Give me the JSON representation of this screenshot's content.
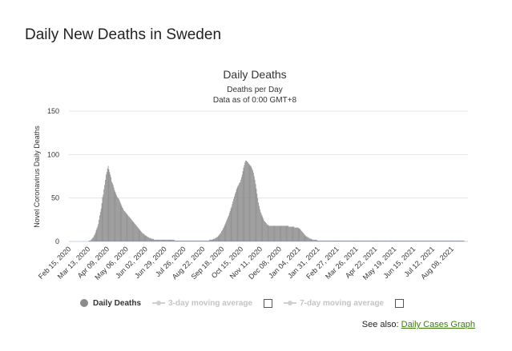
{
  "page": {
    "title": "Daily New Deaths in Sweden",
    "see_also_label": "See also:",
    "see_also_link": "Daily Cases Graph"
  },
  "legend": {
    "series_label": "Daily Deaths",
    "ma3_label": "3-day moving average",
    "ma7_label": "7-day moving average"
  },
  "colors": {
    "bar": "#8c8c8c",
    "grid": "#e6e6e6",
    "link": "#3a7d0a",
    "legend_inactive": "#c4c4c4"
  },
  "chart_data": {
    "type": "bar",
    "title": "Daily Deaths",
    "subtitle": "Deaths per Day",
    "subtitle2": "Data as of 0:00 GMT+8",
    "ylabel": "Novel Coronavirus Daily Deaths",
    "xlabel": "",
    "ylim": [
      0,
      150
    ],
    "yticks": [
      0,
      50,
      100,
      150
    ],
    "grid": true,
    "legend_position": "bottom",
    "x_start": "Feb 15, 2020",
    "x_end": "Aug 31, 2021",
    "xtick_labels": [
      "Feb 15, 2020",
      "Mar 13, 2020",
      "Apr 09, 2020",
      "May 06, 2020",
      "Jun 02, 2020",
      "Jun 29, 2020",
      "Jul 26, 2020",
      "Aug 22, 2020",
      "Sep 18, 2020",
      "Oct 15, 2020",
      "Nov 11, 2020",
      "Dec 08, 2020",
      "Jan 04, 2021",
      "Jan 31, 2021",
      "Feb 27, 2021",
      "Mar 26, 2021",
      "Apr 22, 2021",
      "May 19, 2021",
      "Jun 15, 2021",
      "Jul 12, 2021",
      "Aug 08, 2021"
    ],
    "series": [
      {
        "name": "Daily Deaths",
        "values": [
          0,
          0,
          0,
          0,
          0,
          0,
          0,
          0,
          0,
          0,
          0,
          0,
          0,
          0,
          0,
          0,
          0,
          0,
          0,
          0,
          0,
          0,
          0,
          0,
          0,
          0,
          0,
          0,
          1,
          1,
          1,
          2,
          3,
          4,
          5,
          7,
          8,
          10,
          13,
          15,
          17,
          20,
          25,
          30,
          34,
          38,
          44,
          51,
          54,
          60,
          65,
          71,
          77,
          80,
          84,
          87,
          83,
          80,
          77,
          74,
          69,
          67,
          65,
          62,
          59,
          57,
          55,
          53,
          51,
          50,
          49,
          47,
          45,
          43,
          41,
          39,
          38,
          36,
          35,
          34,
          33,
          32,
          31,
          30,
          29,
          28,
          27,
          26,
          25,
          24,
          23,
          22,
          21,
          20,
          19,
          18,
          17,
          16,
          15,
          14,
          13,
          12,
          11,
          10,
          9,
          9,
          8,
          7,
          7,
          6,
          6,
          5,
          5,
          4,
          4,
          4,
          3,
          3,
          3,
          3,
          2,
          2,
          2,
          2,
          2,
          2,
          2,
          2,
          2,
          2,
          2,
          2,
          2,
          2,
          2,
          2,
          2,
          2,
          2,
          2,
          2,
          2,
          2,
          2,
          2,
          2,
          2,
          2,
          2,
          1,
          1,
          1,
          1,
          1,
          1,
          1,
          1,
          1,
          1,
          1,
          1,
          1,
          1,
          1,
          1,
          1,
          1,
          1,
          1,
          1,
          1,
          1,
          1,
          1,
          1,
          1,
          1,
          1,
          1,
          1,
          1,
          1,
          1,
          1,
          1,
          1,
          1,
          1,
          1,
          1,
          1,
          1,
          1,
          1,
          1,
          1,
          1,
          1,
          2,
          2,
          2,
          2,
          2,
          3,
          3,
          3,
          4,
          4,
          5,
          5,
          6,
          7,
          8,
          9,
          10,
          12,
          13,
          15,
          16,
          18,
          20,
          22,
          24,
          26,
          28,
          30,
          33,
          35,
          38,
          40,
          43,
          46,
          49,
          52,
          55,
          57,
          60,
          62,
          64,
          65,
          67,
          68,
          71,
          74,
          77,
          81,
          85,
          88,
          91,
          93,
          93,
          92,
          91,
          90,
          89,
          88,
          87,
          86,
          84,
          82,
          79,
          75,
          71,
          66,
          61,
          55,
          50,
          45,
          41,
          37,
          34,
          32,
          30,
          28,
          26,
          24,
          23,
          22,
          21,
          20,
          19,
          19,
          18,
          18,
          18,
          18,
          18,
          18,
          18,
          18,
          18,
          18,
          18,
          18,
          18,
          18,
          18,
          18,
          18,
          18,
          18,
          18,
          18,
          18,
          18,
          18,
          18,
          18,
          18,
          18,
          17,
          17,
          17,
          17,
          17,
          17,
          17,
          17,
          16,
          16,
          16,
          16,
          16,
          16,
          15,
          15,
          14,
          13,
          12,
          11,
          10,
          9,
          8,
          7,
          6,
          6,
          5,
          5,
          4,
          4,
          3,
          3,
          3,
          2,
          2,
          2,
          2,
          2,
          2,
          2,
          1,
          1,
          1,
          1,
          1,
          1,
          1,
          1,
          1,
          1,
          1,
          1,
          1,
          1,
          1,
          1,
          1,
          1,
          1,
          1,
          1,
          1,
          1,
          1,
          1,
          1,
          1,
          1,
          1,
          1,
          1,
          1,
          1,
          1,
          1,
          1,
          1,
          1,
          1,
          1,
          1,
          1,
          1,
          1,
          1,
          1,
          1,
          1,
          1,
          1,
          1,
          1,
          1,
          1,
          1,
          1,
          1,
          1,
          1,
          1,
          1,
          1,
          1,
          1,
          1,
          1,
          1,
          1,
          1,
          1,
          1,
          1,
          1,
          1,
          1,
          1,
          1,
          1,
          1,
          1,
          1,
          1,
          1,
          1,
          1,
          1,
          1,
          1,
          1,
          1,
          1,
          1,
          1,
          1,
          1,
          1,
          1,
          1,
          1,
          1,
          1,
          1,
          1,
          1,
          1,
          1,
          1,
          1,
          1,
          1,
          1,
          1,
          1,
          1,
          1,
          1,
          1,
          1,
          1,
          1,
          1,
          1,
          1,
          1,
          1,
          1,
          1,
          1,
          1,
          1,
          1,
          1,
          1,
          1,
          1,
          1,
          1,
          1,
          1,
          1,
          1,
          1,
          1,
          1,
          1,
          1,
          1,
          1,
          1,
          1,
          1,
          1,
          1,
          1,
          1,
          1,
          1,
          1,
          1,
          1,
          1,
          1,
          1,
          1,
          1,
          1,
          1,
          1,
          1,
          1,
          1,
          1,
          1,
          1,
          1,
          1,
          1,
          1,
          1,
          1,
          1,
          1,
          1,
          1,
          1,
          1,
          1,
          1,
          1,
          1,
          1,
          1,
          1,
          1,
          1,
          1,
          1,
          1,
          1,
          1,
          1,
          1,
          1,
          1,
          1,
          1,
          1,
          1
        ]
      }
    ]
  }
}
